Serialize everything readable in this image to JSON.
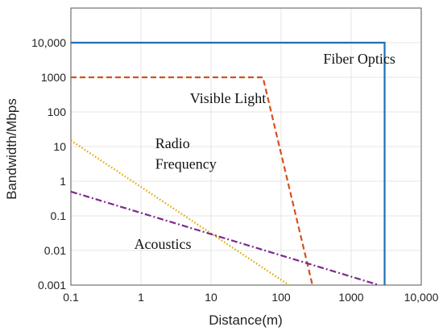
{
  "chart_data": {
    "type": "line",
    "title": "",
    "xlabel": "Distance(m)",
    "ylabel": "Bandwidth/Mbps",
    "xscale": "log",
    "yscale": "log",
    "xlim": [
      0.1,
      10000
    ],
    "ylim": [
      0.001,
      100000
    ],
    "grid": true,
    "x_ticks": [
      0.1,
      1,
      10,
      100,
      1000,
      10000
    ],
    "x_tick_labels": [
      "0.1",
      "1",
      "10",
      "100",
      "1000",
      "10,000"
    ],
    "y_ticks": [
      0.001,
      0.01,
      0.1,
      1,
      10,
      100,
      1000,
      10000
    ],
    "y_tick_labels": [
      "0.001",
      "0.01",
      "0.1",
      "1",
      "10",
      "100",
      "1000",
      "10,000"
    ],
    "series": [
      {
        "name": "Fiber Optics",
        "color": "#1f6fb4",
        "dash": "solid",
        "points": [
          [
            0.1,
            10000
          ],
          [
            3000,
            10000
          ],
          [
            3000,
            0.001
          ]
        ]
      },
      {
        "name": "Visible Light",
        "color": "#d4501c",
        "dash": "dashed",
        "points": [
          [
            0.1,
            1000
          ],
          [
            55,
            1000
          ],
          [
            280,
            0.001
          ]
        ]
      },
      {
        "name": "Radio Frequency",
        "color": "#e0a800",
        "dash": "dotted",
        "points": [
          [
            0.1,
            15
          ],
          [
            130,
            0.001
          ]
        ]
      },
      {
        "name": "Acoustics",
        "color": "#7b2a8c",
        "dash": "dashdot",
        "points": [
          [
            0.1,
            0.5
          ],
          [
            2500,
            0.001
          ]
        ]
      }
    ],
    "annotations": [
      {
        "text": "Fiber Optics",
        "x": 400,
        "y": 2500
      },
      {
        "text": "Visible Light",
        "x": 5,
        "y": 180
      },
      {
        "text": "Radio",
        "x": 1.6,
        "y": 9
      },
      {
        "text": "Frequency",
        "x": 1.6,
        "y": 2.3
      },
      {
        "text": "Acoustics",
        "x": 0.8,
        "y": 0.011
      }
    ]
  }
}
